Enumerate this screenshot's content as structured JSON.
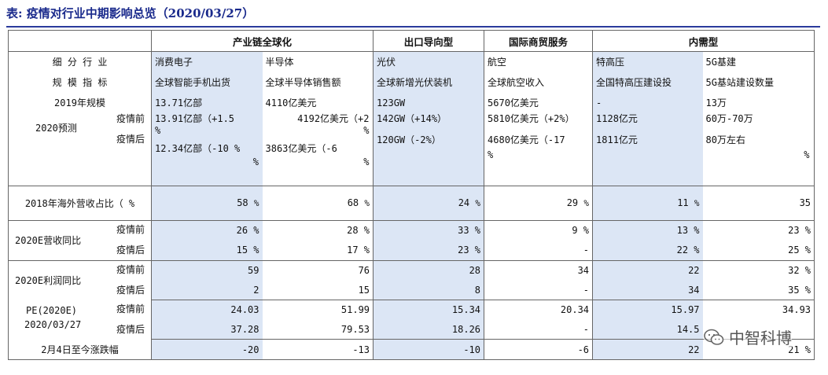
{
  "title": "表: 疫情对行业中期影响总览（2020/03/27）",
  "groups": {
    "g1": "产业链全球化",
    "g2": "出口导向型",
    "g3": "国际商贸服务",
    "g4": "内需型"
  },
  "labels": {
    "segment": "细 分 行 业",
    "metric": "规 模 指 标",
    "scale2019": "2019年规模",
    "forecast2020": "2020预测",
    "before": "疫情前",
    "after": "疫情后",
    "overseas": "2018年海外营收占比（  %",
    "revenue": "2020E营收同比",
    "profit": "2020E利润同比",
    "pe1": "PE(2020E)",
    "pe2": "2020/03/27",
    "change": "2月4日至今涨跌幅"
  },
  "columns": [
    {
      "segment": "消费电子",
      "metric": "全球智能手机出货",
      "scale2019": "13.71亿部",
      "before": "13.91亿部（+1.5",
      "before_b": "%",
      "after": "12.34亿部（-10 %",
      "after_b": "%",
      "overseas": "58",
      "ov_pct": "%",
      "rev_before": "26 %",
      "rev_after": "15 %",
      "profit_before": "59",
      "profit_after": "2",
      "pe_before": "24.03",
      "pe_after": "37.28",
      "change": "-20"
    },
    {
      "segment": "半导体",
      "metric": "全球半导体销售额",
      "scale2019": "4110亿美元",
      "before": "4192亿美元（+2",
      "before_b": "%",
      "after": "3863亿美元（-6",
      "after_b": "%",
      "overseas": "68",
      "ov_pct": "%",
      "rev_before": "28 %",
      "rev_after": "17 %",
      "profit_before": "76",
      "profit_after": "15",
      "pe_before": "51.99",
      "pe_after": "79.53",
      "change": "-13"
    },
    {
      "segment": "光伏",
      "metric": "全球新增光伏装机",
      "scale2019": "123GW",
      "before": "142GW（+14%）",
      "after": "120GW（-2%）",
      "overseas": "24",
      "ov_pct": "%",
      "rev_before": "33 %",
      "rev_after": "23 %",
      "profit_before": "28",
      "profit_after": "8",
      "pe_before": "15.34",
      "pe_after": "18.26",
      "change": "-10"
    },
    {
      "segment": "航空",
      "metric": "全球航空收入",
      "scale2019": "5670亿美元",
      "before": "5810亿美元（+2%）",
      "after": "4680亿美元（-17",
      "after_b": "%",
      "overseas": "29",
      "ov_pct": "%",
      "rev_before": "9 %",
      "rev_after": "-",
      "profit_before": "34",
      "profit_after": "-",
      "pe_before": "20.34",
      "pe_after": "-",
      "change": "-6"
    },
    {
      "segment": "特高压",
      "metric": "全国特高压建设投",
      "scale2019": "-",
      "before": "1128亿元",
      "after": "1811亿元",
      "overseas": "11",
      "ov_pct": "%",
      "rev_before": "13 %",
      "rev_after": "22 %",
      "profit_before": "22",
      "profit_after": "34",
      "pe_before": "15.97",
      "pe_after": "14.5",
      "change": "22"
    },
    {
      "segment": "5G基建",
      "metric": "5G基站建设数量",
      "scale2019": "13万",
      "before": "60万-70万",
      "after": "80万左右",
      "after_b": "%",
      "overseas": "35",
      "rev_before": "23 %",
      "rev_after": "25 %",
      "profit_before": "32 %",
      "profit_after": "35 %",
      "pe_before": "34.93",
      "pe_after": "",
      "change": "21 %"
    }
  ],
  "watermark": "中智科博",
  "colors": {
    "title": "#1a2a8c",
    "highlight": "#dce6f5"
  }
}
